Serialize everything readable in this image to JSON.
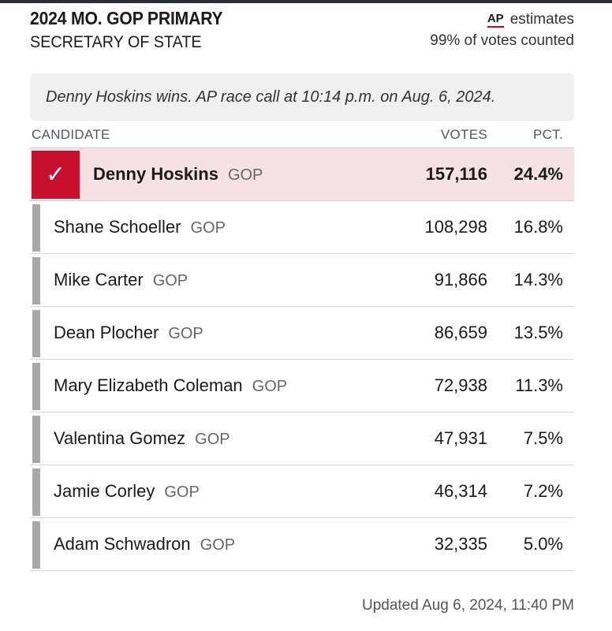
{
  "header": {
    "title": "2024 MO. GOP PRIMARY",
    "subtitle": "SECRETARY OF STATE",
    "ap_logo": "AP",
    "estimates_label": "estimates",
    "votes_counted": "99% of votes counted"
  },
  "race_call": "Denny Hoskins wins. AP race call at 10:14 p.m. on Aug. 6, 2024.",
  "table": {
    "headers": {
      "candidate": "CANDIDATE",
      "votes": "VOTES",
      "pct": "PCT."
    },
    "rows": [
      {
        "name": "Denny Hoskins",
        "party": "GOP",
        "votes": "157,116",
        "pct": "24.4%",
        "winner": true
      },
      {
        "name": "Shane Schoeller",
        "party": "GOP",
        "votes": "108,298",
        "pct": "16.8%"
      },
      {
        "name": "Mike Carter",
        "party": "GOP",
        "votes": "91,866",
        "pct": "14.3%"
      },
      {
        "name": "Dean Plocher",
        "party": "GOP",
        "votes": "86,659",
        "pct": "13.5%"
      },
      {
        "name": "Mary Elizabeth Coleman",
        "party": "GOP",
        "votes": "72,938",
        "pct": "11.3%"
      },
      {
        "name": "Valentina Gomez",
        "party": "GOP",
        "votes": "47,931",
        "pct": "7.5%"
      },
      {
        "name": "Jamie Corley",
        "party": "GOP",
        "votes": "46,314",
        "pct": "7.2%"
      },
      {
        "name": "Adam Schwadron",
        "party": "GOP",
        "votes": "32,335",
        "pct": "5.0%"
      }
    ]
  },
  "updated": "Updated Aug 6, 2024, 11:40 PM",
  "colors": {
    "winner_accent": "#c8102e",
    "winner_row_bg": "#f6e2e4",
    "candidate_bar": "#a9a9a9",
    "call_box_bg": "#f0f0f0"
  },
  "icons": {
    "winner_check": "checkmark-icon"
  }
}
